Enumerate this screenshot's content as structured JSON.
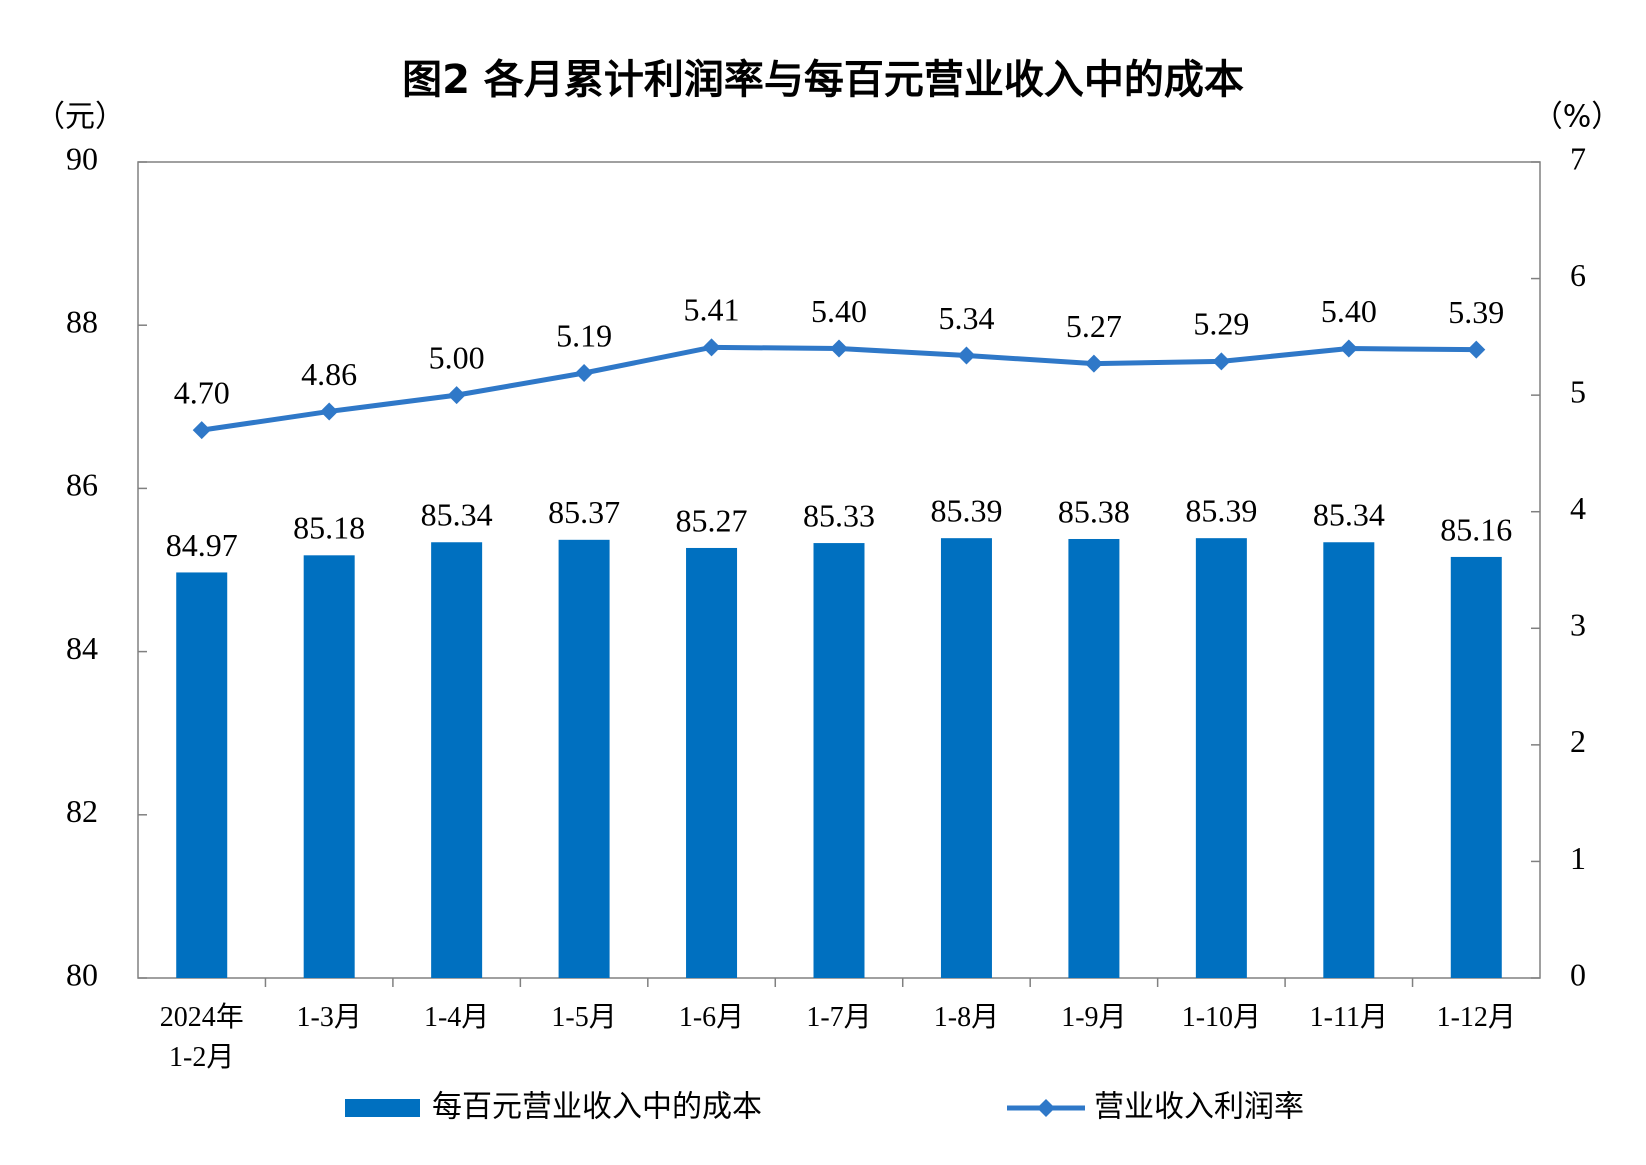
{
  "chart_data": {
    "type": "bar_line",
    "title": "图2  各月累计利润率与每百元营业收入中的成本",
    "y_label": "（元）",
    "y2_label": "（%）",
    "categories": [
      "2024年\n1-2月",
      "1-3月",
      "1-4月",
      "1-5月",
      "1-6月",
      "1-7月",
      "1-8月",
      "1-9月",
      "1-10月",
      "1-11月",
      "1-12月"
    ],
    "series": [
      {
        "name": "每百元营业收入中的成本",
        "type": "bar",
        "color": "#0070c0",
        "values": [
          84.97,
          85.18,
          85.34,
          85.37,
          85.27,
          85.33,
          85.39,
          85.38,
          85.39,
          85.34,
          85.16
        ],
        "value_labels": [
          "84.97",
          "85.18",
          "85.34",
          "85.37",
          "85.27",
          "85.33",
          "85.39",
          "85.38",
          "85.39",
          "85.34",
          "85.16"
        ]
      },
      {
        "name": "营业收入利润率",
        "type": "line",
        "axis": "y2",
        "color": "#2f78c8",
        "values": [
          4.7,
          4.86,
          5.0,
          5.19,
          5.41,
          5.4,
          5.34,
          5.27,
          5.29,
          5.4,
          5.39
        ],
        "value_labels": [
          "4.70",
          "4.86",
          "5.00",
          "5.19",
          "5.41",
          "5.40",
          "5.34",
          "5.27",
          "5.29",
          "5.40",
          "5.39"
        ]
      }
    ],
    "ylim": [
      80,
      90
    ],
    "yticks": [
      80,
      82,
      84,
      86,
      88,
      90
    ],
    "y2lim": [
      0,
      7
    ],
    "y2ticks": [
      0,
      1,
      2,
      3,
      4,
      5,
      6,
      7
    ],
    "legend": "bottom"
  }
}
